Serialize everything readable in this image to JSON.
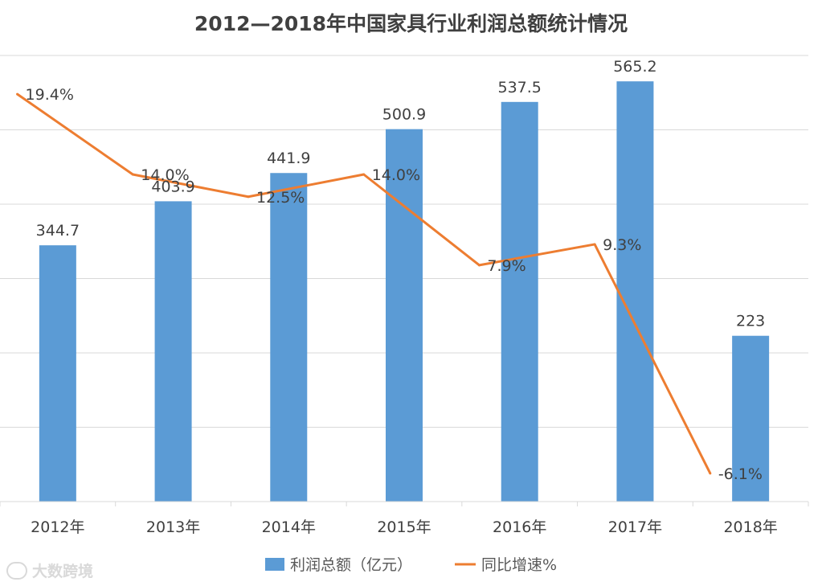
{
  "chart_data": {
    "type": "bar+line",
    "title": "2012—2018年中国家具行业利润总额统计情况",
    "categories": [
      "2012年",
      "2013年",
      "2014年",
      "2015年",
      "2016年",
      "2017年",
      "2018年"
    ],
    "series": [
      {
        "name": "利润总额（亿元）",
        "type": "bar",
        "color": "#5b9bd5",
        "values": [
          344.7,
          403.9,
          441.9,
          500.9,
          537.5,
          565.2,
          223
        ],
        "labels": [
          "344.7",
          "403.9",
          "441.9",
          "500.9",
          "537.5",
          "565.2",
          "223"
        ]
      },
      {
        "name": "同比增速%",
        "type": "line",
        "color": "#ed7d31",
        "values": [
          19.4,
          14.0,
          12.5,
          14.0,
          7.9,
          9.3,
          -6.1
        ],
        "labels": [
          "19.4%",
          "14.0%",
          "12.5%",
          "14.0%",
          "7.9%",
          "9.3%",
          "-6.1%"
        ]
      }
    ],
    "ylim_bar": [
      0,
      600
    ],
    "ylim_line": [
      -8,
      22
    ],
    "grid": true,
    "legend": "bottom"
  },
  "watermark": "大数跨境"
}
